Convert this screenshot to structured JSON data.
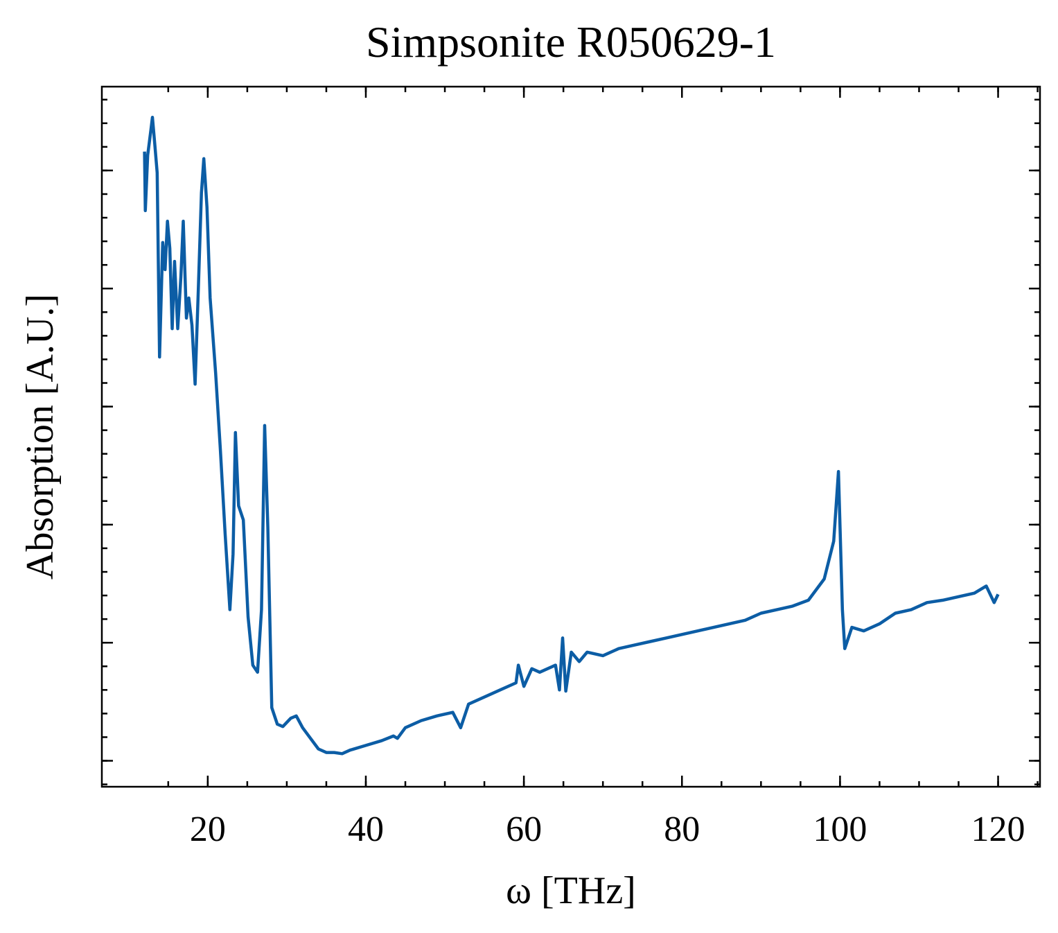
{
  "chart_data": {
    "type": "line",
    "title": "Simpsonite R050629-1",
    "x_label": "ω [THz]",
    "y_label": "Absorption [A.U.]",
    "xlim": [
      6.6,
      125.3
    ],
    "xticks": [
      20,
      40,
      60,
      80,
      100,
      120
    ],
    "ylim": [
      -0.22,
      5.71
    ],
    "yticks": [
      0,
      1,
      2,
      3,
      4,
      5
    ],
    "series": [
      {
        "name": "Simpsonite R050629-1",
        "color": "#0c5da5",
        "x": [
          12,
          12.1,
          12.4,
          12.8,
          13.0,
          13.3,
          13.6,
          13.9,
          14.3,
          14.6,
          14.9,
          15.2,
          15.5,
          15.8,
          16.2,
          16.6,
          16.9,
          17.3,
          17.6,
          18.0,
          18.4,
          18.8,
          19.2,
          19.5,
          19.9,
          20.3,
          21,
          21.6,
          22.2,
          22.8,
          23.2,
          23.5,
          23.9,
          24.5,
          25.1,
          25.7,
          26.3,
          26.8,
          27.2,
          27.6,
          28.1,
          28.8,
          29.5,
          30.5,
          31.2,
          32,
          33,
          34,
          35,
          36,
          37,
          38,
          40,
          42,
          43.5,
          44,
          45,
          47,
          49,
          51,
          52,
          53,
          55,
          57,
          59,
          59.3,
          60,
          61,
          62,
          63,
          64,
          64.5,
          64.9,
          65.3,
          66,
          67,
          68,
          70,
          72,
          74,
          76,
          78,
          80,
          82,
          84,
          86,
          88,
          90,
          92,
          94,
          96,
          98,
          99.2,
          99.8,
          100.3,
          100.6,
          101.5,
          103,
          105,
          107,
          109,
          111,
          113,
          115,
          117,
          118.5,
          119.5,
          120
        ],
        "values": [
          5.16,
          4.66,
          5.13,
          5.34,
          5.45,
          5.22,
          4.98,
          3.42,
          4.39,
          4.16,
          4.57,
          4.34,
          3.66,
          4.23,
          3.66,
          4.1,
          4.57,
          3.75,
          3.92,
          3.69,
          3.19,
          3.98,
          4.81,
          5.1,
          4.69,
          3.92,
          3.28,
          2.63,
          1.92,
          1.28,
          1.75,
          2.78,
          2.16,
          2.04,
          1.22,
          0.81,
          0.75,
          1.28,
          2.84,
          1.98,
          0.45,
          0.31,
          0.29,
          0.36,
          0.38,
          0.28,
          0.19,
          0.1,
          0.07,
          0.07,
          0.06,
          0.09,
          0.13,
          0.17,
          0.21,
          0.19,
          0.28,
          0.34,
          0.38,
          0.41,
          0.28,
          0.48,
          0.54,
          0.6,
          0.66,
          0.81,
          0.63,
          0.78,
          0.75,
          0.78,
          0.81,
          0.6,
          1.04,
          0.59,
          0.92,
          0.84,
          0.92,
          0.89,
          0.95,
          0.98,
          1.01,
          1.04,
          1.07,
          1.1,
          1.13,
          1.16,
          1.19,
          1.25,
          1.28,
          1.31,
          1.36,
          1.54,
          1.86,
          2.45,
          1.28,
          0.95,
          1.13,
          1.1,
          1.16,
          1.25,
          1.28,
          1.34,
          1.36,
          1.39,
          1.42,
          1.48,
          1.34,
          1.41
        ]
      }
    ]
  }
}
